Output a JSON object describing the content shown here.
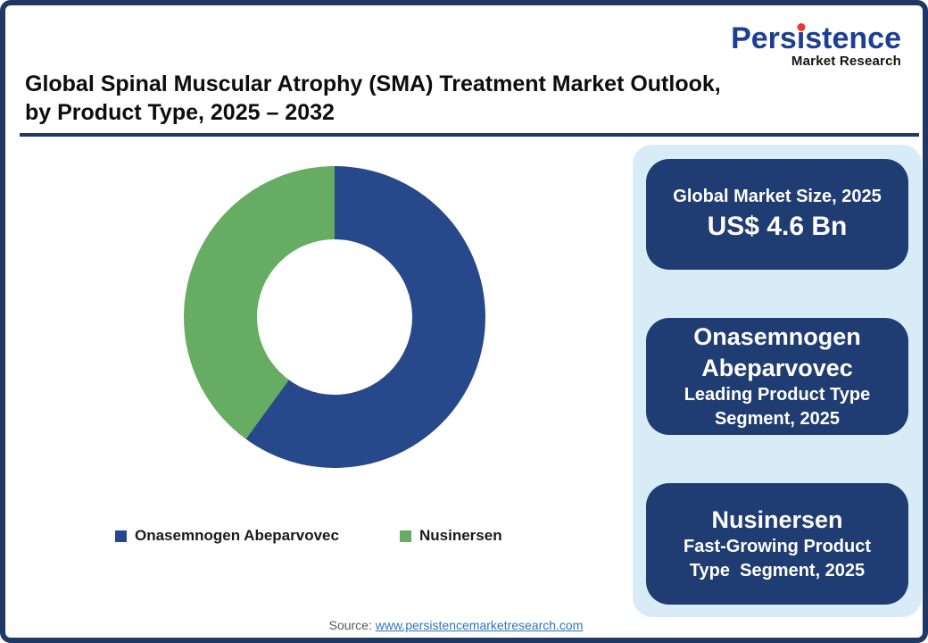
{
  "theme": {
    "frame_navy": "#1f3864",
    "card_navy": "#1f3d72",
    "panel_light_blue": "#d8ecf8",
    "donut_blue": "#27498b",
    "donut_green": "#66ac62",
    "logo_blue": "#1c3e94",
    "logo_dot_red": "#e8392e",
    "link_blue": "#2e75b6"
  },
  "logo": {
    "wordmark": "Persistence",
    "wordmark_pre": "Pers",
    "wordmark_i": "i",
    "wordmark_post": "stence",
    "subtitle": "Market Research"
  },
  "header": {
    "title_line1": "Global Spinal Muscular Atrophy (SMA) Treatment Market Outlook,",
    "title_line2": "by Product Type, 2025 – 2032"
  },
  "chart_data": {
    "type": "pie",
    "subtype": "donut",
    "title": "Global Spinal Muscular Atrophy (SMA) Treatment Market Outlook, by Product Type, 2025 – 2032",
    "categories": [
      "Onasemnogen Abeparvovec",
      "Nusinersen"
    ],
    "values": [
      60,
      40
    ],
    "unit": "% market share (estimated from arc angles; no data labels shown)",
    "colors": [
      "#27498b",
      "#66ac62"
    ],
    "start_angle_deg": 0,
    "direction": "clockwise",
    "inner_radius_ratio": 0.51,
    "legend_position": "bottom"
  },
  "legend": {
    "items": [
      {
        "label": "Onasemnogen Abeparvovec",
        "color": "#27498b"
      },
      {
        "label": "Nusinersen",
        "color": "#66ac62"
      }
    ]
  },
  "sidebar": {
    "cards": [
      {
        "label": "Global Market Size, 2025",
        "value": "US$ 4.6 Bn"
      },
      {
        "title_lines": [
          "Onasemnogen",
          "Abeparvovec"
        ],
        "sub_lines": [
          "Leading Product Type",
          "Segment, 2025"
        ]
      },
      {
        "title_lines": [
          "Nusinersen"
        ],
        "sub_lines": [
          "Fast-Growing Product",
          "Type  Segment, 2025"
        ]
      }
    ]
  },
  "source": {
    "label": "Source:",
    "link_text": "www.persistencemarketresearch.com"
  }
}
